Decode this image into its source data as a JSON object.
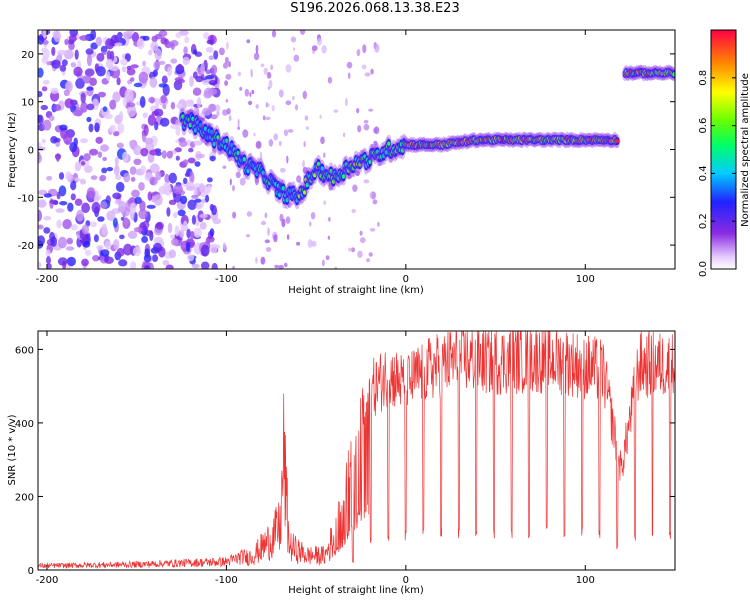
{
  "title": "S196.2026.068.13.38.E23",
  "chart_data": [
    {
      "type": "heatmap",
      "xlabel": "Height of straight line (km)",
      "ylabel": "Frequency (Hz)",
      "xlim": [
        -205,
        150
      ],
      "ylim": [
        -25,
        25
      ],
      "xticks": [
        -200,
        -100,
        0,
        100
      ],
      "yticks": [
        -20,
        -10,
        0,
        10,
        20
      ],
      "colorbar": {
        "label": "Normalized spectral amplitude",
        "range": [
          0.0,
          1.0
        ],
        "ticks": [
          0.0,
          0.2,
          0.4,
          0.6,
          0.8
        ],
        "tick_labels": [
          "0.0",
          "0.2",
          "0.4",
          "0.6",
          "0.8"
        ]
      },
      "ridge": {
        "x": [
          -120,
          -110,
          -100,
          -90,
          -80,
          -70,
          -60,
          -50,
          -40,
          -30,
          -20,
          -10,
          0,
          20,
          40,
          60,
          80,
          100,
          118,
          122,
          150
        ],
        "y": [
          6,
          3,
          1,
          -3,
          -5,
          -9,
          -10,
          -4,
          -6,
          -3,
          -2,
          0,
          1,
          1,
          2,
          2,
          2,
          2,
          2,
          16,
          16
        ]
      }
    },
    {
      "type": "line",
      "xlabel": "Height of straight line (km)",
      "ylabel": "SNR (10 * v/v)",
      "xlim": [
        -205,
        150
      ],
      "ylim": [
        0,
        650
      ],
      "xticks": [
        -200,
        -100,
        0,
        100
      ],
      "yticks": [
        0,
        200,
        400,
        600
      ],
      "color": "#ee3333",
      "envelope": {
        "x": [
          -205,
          -150,
          -100,
          -85,
          -75,
          -70,
          -68,
          -65,
          -55,
          -45,
          -35,
          -30,
          -25,
          -20,
          -10,
          0,
          10,
          20,
          30,
          50,
          70,
          90,
          110,
          120,
          130,
          150
        ],
        "y": [
          15,
          20,
          30,
          60,
          130,
          180,
          470,
          100,
          60,
          60,
          220,
          380,
          460,
          540,
          590,
          560,
          600,
          620,
          640,
          630,
          640,
          630,
          600,
          300,
          620,
          620
        ]
      }
    }
  ]
}
